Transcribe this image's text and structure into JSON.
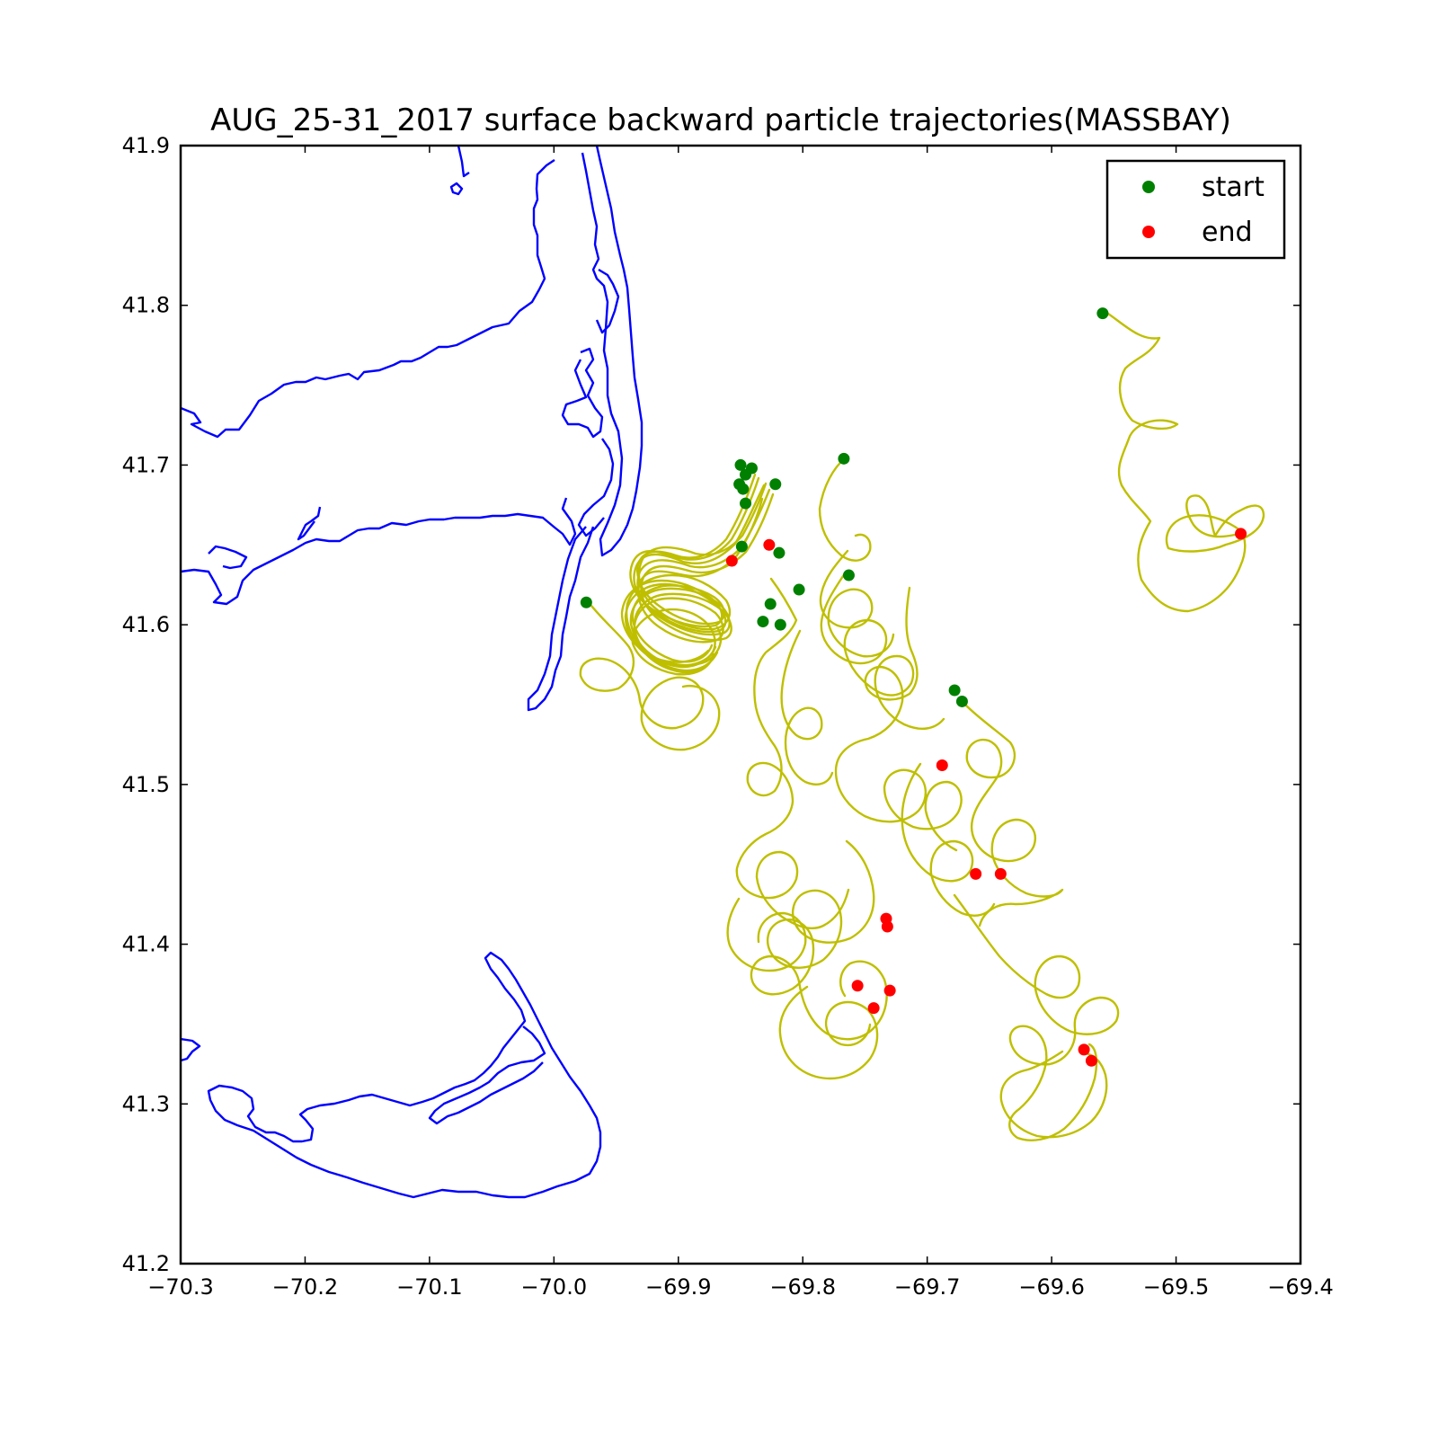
{
  "chart_data": {
    "type": "scatter",
    "title": "AUG_25-31_2017 surface backward particle trajectories(MASSBAY)",
    "xlabel": "",
    "ylabel": "",
    "xlim": [
      -70.3,
      -69.4
    ],
    "ylim": [
      41.2,
      41.9
    ],
    "x_ticks": [
      "−70.3",
      "−70.2",
      "−70.1",
      "−70.0",
      "−69.9",
      "−69.8",
      "−69.7",
      "−69.6",
      "−69.5",
      "−69.4"
    ],
    "y_ticks": [
      "41.2",
      "41.3",
      "41.4",
      "41.5",
      "41.6",
      "41.7",
      "41.8",
      "41.9"
    ],
    "grid": false,
    "legend_position": "top-right",
    "colors": {
      "coastline": "#0000ff",
      "trajectory": "#bfbf00",
      "start": "#008000",
      "end": "#ff0000"
    },
    "series": [
      {
        "name": "start",
        "points": [
          [
            -69.559,
            41.795
          ],
          [
            -69.767,
            41.704
          ],
          [
            -69.85,
            41.7
          ],
          [
            -69.841,
            41.698
          ],
          [
            -69.846,
            41.694
          ],
          [
            -69.851,
            41.688
          ],
          [
            -69.848,
            41.685
          ],
          [
            -69.822,
            41.688
          ],
          [
            -69.846,
            41.676
          ],
          [
            -69.849,
            41.649
          ],
          [
            -69.819,
            41.645
          ],
          [
            -69.763,
            41.631
          ],
          [
            -69.803,
            41.622
          ],
          [
            -69.826,
            41.613
          ],
          [
            -69.832,
            41.602
          ],
          [
            -69.818,
            41.6
          ],
          [
            -69.974,
            41.614
          ],
          [
            -69.678,
            41.559
          ],
          [
            -69.672,
            41.552
          ]
        ]
      },
      {
        "name": "end",
        "points": [
          [
            -69.448,
            41.657
          ],
          [
            -69.857,
            41.64
          ],
          [
            -69.827,
            41.65
          ],
          [
            -69.688,
            41.512
          ],
          [
            -69.661,
            41.444
          ],
          [
            -69.641,
            41.444
          ],
          [
            -69.733,
            41.416
          ],
          [
            -69.732,
            41.411
          ],
          [
            -69.756,
            41.374
          ],
          [
            -69.73,
            41.371
          ],
          [
            -69.743,
            41.36
          ],
          [
            -69.574,
            41.334
          ],
          [
            -69.568,
            41.327
          ]
        ]
      }
    ]
  }
}
